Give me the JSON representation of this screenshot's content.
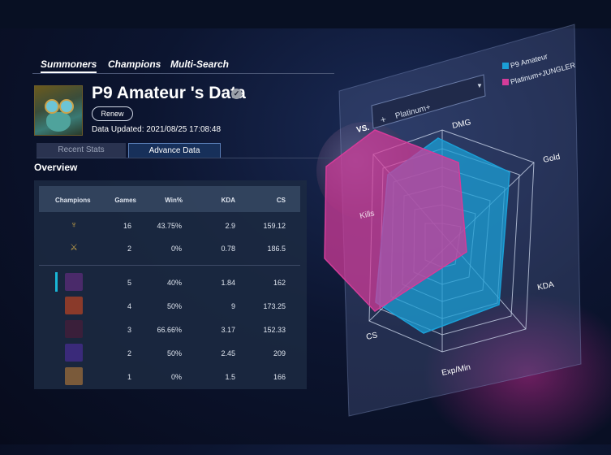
{
  "nav": {
    "tabs": [
      "Summoners",
      "Champions",
      "Multi-Search"
    ]
  },
  "profile": {
    "title": "P9 Amateur 's Data",
    "renew_label": "Renew",
    "updated": "Data Updated: 2021/08/25 17:08:48"
  },
  "tabs": {
    "recent": "Recent Stats",
    "advance": "Advance Data"
  },
  "overview": "Overview",
  "table": {
    "headers": {
      "champions": "Champions",
      "games": "Games",
      "winrate": "Win%",
      "kda": "KDA",
      "cs": "CS"
    },
    "lane_rows": [
      {
        "icon": "jungle-icon",
        "games": "16",
        "winrate": "43.75%",
        "kda": "2.9",
        "cs": "159.12"
      },
      {
        "icon": "sword-icon",
        "games": "2",
        "winrate": "0%",
        "kda": "0.78",
        "cs": "186.5"
      }
    ],
    "champion_rows": [
      {
        "games": "5",
        "winrate": "40%",
        "kda": "1.84",
        "cs": "162",
        "color": "#4a2a6a"
      },
      {
        "games": "4",
        "winrate": "50%",
        "kda": "9",
        "cs": "173.25",
        "color": "#8a3a2a"
      },
      {
        "games": "3",
        "winrate": "66.66%",
        "kda": "3.17",
        "cs": "152.33",
        "color": "#3a1f3a"
      },
      {
        "games": "2",
        "winrate": "50%",
        "kda": "2.45",
        "cs": "209",
        "color": "#3a2a7a"
      },
      {
        "games": "1",
        "winrate": "0%",
        "kda": "1.5",
        "cs": "166",
        "color": "#7a5a3a"
      }
    ]
  },
  "comparison": {
    "vs_label": "VS.",
    "selected_rank": "Platinum+",
    "legend": [
      {
        "label": "P9 Amateur",
        "color": "#1b9fd6"
      },
      {
        "label": "Platinum+JUNGLER",
        "color": "#d43c9a"
      }
    ],
    "axes": [
      "DMG",
      "Gold",
      "KDA",
      "Exp/Min",
      "CS",
      "Kills"
    ]
  }
}
